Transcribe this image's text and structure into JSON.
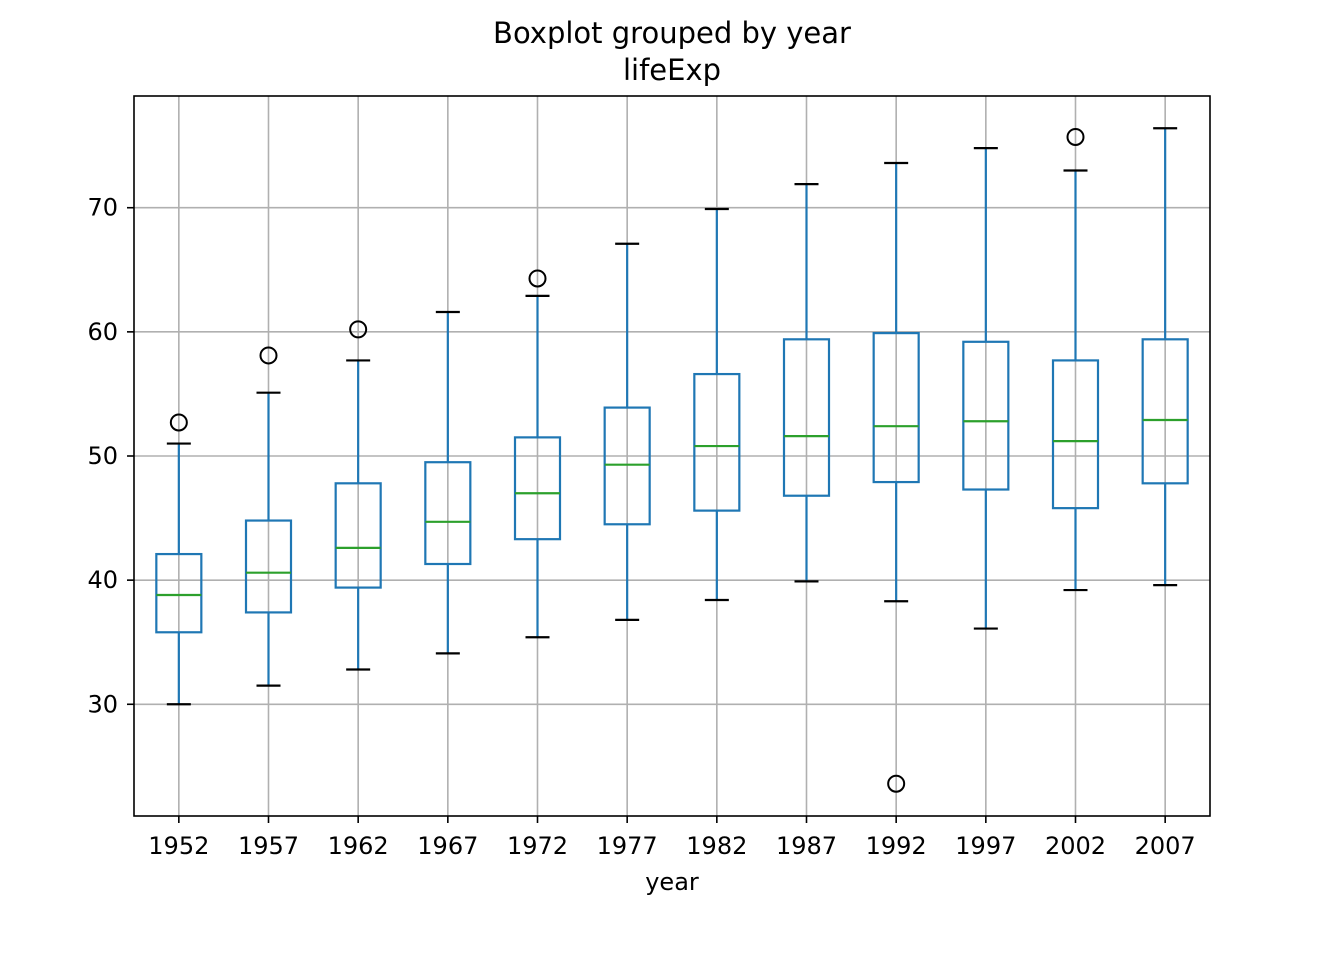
{
  "chart_data": {
    "type": "boxplot",
    "title": "Boxplot grouped by year",
    "subtitle": "lifeExp",
    "xlabel": "year",
    "ylabel": "",
    "ylim": [
      21,
      79
    ],
    "yticks": [
      30,
      40,
      50,
      60,
      70
    ],
    "grid": true,
    "colors": {
      "box": "#1f77b4",
      "median": "#2ca02c",
      "cap": "#000000",
      "grid": "#b0b0b0",
      "frame": "#000000"
    },
    "categories": [
      "1952",
      "1957",
      "1962",
      "1967",
      "1972",
      "1977",
      "1982",
      "1987",
      "1992",
      "1997",
      "2002",
      "2007"
    ],
    "boxes": [
      {
        "year": "1952",
        "whislo": 30.0,
        "q1": 35.8,
        "med": 38.8,
        "q3": 42.1,
        "whishi": 51.0,
        "fliers": [
          52.7
        ]
      },
      {
        "year": "1957",
        "whislo": 31.5,
        "q1": 37.4,
        "med": 40.6,
        "q3": 44.8,
        "whishi": 55.1,
        "fliers": [
          58.1
        ]
      },
      {
        "year": "1962",
        "whislo": 32.8,
        "q1": 39.4,
        "med": 42.6,
        "q3": 47.8,
        "whishi": 57.7,
        "fliers": [
          60.2
        ]
      },
      {
        "year": "1967",
        "whislo": 34.1,
        "q1": 41.3,
        "med": 44.7,
        "q3": 49.5,
        "whishi": 61.6,
        "fliers": []
      },
      {
        "year": "1972",
        "whislo": 35.4,
        "q1": 43.3,
        "med": 47.0,
        "q3": 51.5,
        "whishi": 62.9,
        "fliers": [
          64.3
        ]
      },
      {
        "year": "1977",
        "whislo": 36.8,
        "q1": 44.5,
        "med": 49.3,
        "q3": 53.9,
        "whishi": 67.1,
        "fliers": []
      },
      {
        "year": "1982",
        "whislo": 38.4,
        "q1": 45.6,
        "med": 50.8,
        "q3": 56.6,
        "whishi": 69.9,
        "fliers": []
      },
      {
        "year": "1987",
        "whislo": 39.9,
        "q1": 46.8,
        "med": 51.6,
        "q3": 59.4,
        "whishi": 71.9,
        "fliers": []
      },
      {
        "year": "1992",
        "whislo": 38.3,
        "q1": 47.9,
        "med": 52.4,
        "q3": 59.9,
        "whishi": 73.6,
        "fliers": [
          23.6
        ]
      },
      {
        "year": "1997",
        "whislo": 36.1,
        "q1": 47.3,
        "med": 52.8,
        "q3": 59.2,
        "whishi": 74.8,
        "fliers": []
      },
      {
        "year": "2002",
        "whislo": 39.2,
        "q1": 45.8,
        "med": 51.2,
        "q3": 57.7,
        "whishi": 73.0,
        "fliers": [
          75.7
        ]
      },
      {
        "year": "2007",
        "whislo": 39.6,
        "q1": 47.8,
        "med": 52.9,
        "q3": 59.4,
        "whishi": 76.4,
        "fliers": []
      }
    ]
  }
}
